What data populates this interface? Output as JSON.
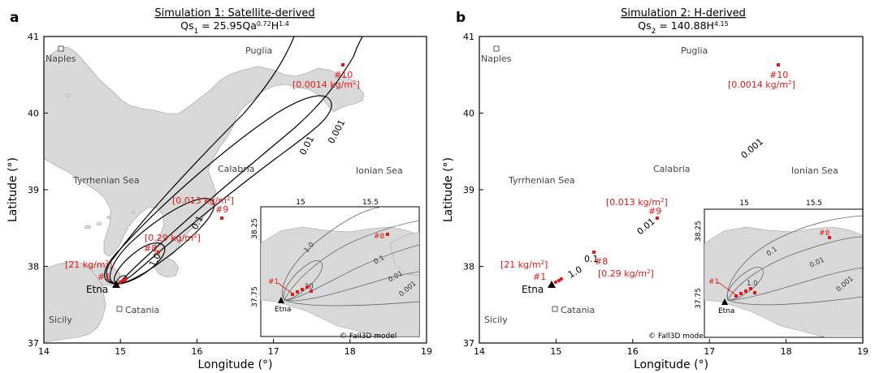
{
  "figure": {
    "panels": [
      {
        "letter": "a",
        "title": "Simulation 1: Satellite-derived",
        "formula_lhs": "Qs",
        "formula_sub": "1",
        "formula_rhs_prefix": " = 25.95Qa",
        "formula_exp1": "0.72",
        "formula_rhs_mid": "H",
        "formula_exp2": "1.4",
        "contour_labels": [
          "0.001",
          "0.01",
          "0.1",
          "1.0"
        ],
        "site_labels": [
          "[21 kg/m",
          "[0.29 kg/m",
          "[0.013 kg/m",
          "[0.0014 kg/m"
        ],
        "site_label_suffix": "2",
        "site_label_close": "]",
        "copyright": "© Fall3D model",
        "inset": {
          "x_ticks": [
            "15",
            "15.5"
          ],
          "y_ticks": [
            "38.25",
            "37.75"
          ],
          "contour_labels": [
            "20",
            "1.0",
            "0.1",
            "0.01",
            "0.001"
          ],
          "site_labels": [
            "#1",
            "#8"
          ],
          "etna": "Etna"
        }
      },
      {
        "letter": "b",
        "title": "Simulation 2: H-derived",
        "formula_lhs": "Qs",
        "formula_sub": "2",
        "formula_rhs_prefix": " = 140.88H",
        "formula_exp1": "4.15",
        "formula_rhs_mid": "",
        "formula_exp2": "",
        "contour_labels": [
          "0.001",
          "0.01",
          "0.1",
          "1.0"
        ],
        "site_labels": [
          "[21 kg/m",
          "[0.29 kg/m",
          "[0.013 kg/m",
          "[0.0014 kg/m"
        ],
        "site_label_suffix": "2",
        "site_label_close": "]",
        "copyright": "© Fall3D model",
        "inset": {
          "x_ticks": [
            "15",
            "15.5"
          ],
          "y_ticks": [
            "38.25",
            "37.75"
          ],
          "contour_labels": [
            "1.0",
            "0.1",
            "0.01",
            "0.001"
          ],
          "site_labels": [
            "#1",
            "#8"
          ],
          "etna": "Etna"
        }
      }
    ],
    "places": {
      "naples": "Naples",
      "puglia": "Puglia",
      "calabria": "Calabria",
      "sicily": "Sicily",
      "catania": "Catania",
      "etna": "Etna",
      "tyrrhenian": "Tyrrhenian Sea",
      "ionian": "Ionian Sea"
    },
    "sites": [
      "#1",
      "#8",
      "#9",
      "#10"
    ]
  },
  "chart_data": {
    "type": "scatter",
    "xlabel": "Longitude (°)",
    "ylabel": "Latitude (°)",
    "xlim": [
      14,
      19
    ],
    "ylim": [
      37,
      41
    ],
    "x_ticks": [
      14,
      15,
      16,
      17,
      18,
      19
    ],
    "y_ticks": [
      37,
      38,
      39,
      40,
      41
    ],
    "grid": false,
    "vent": {
      "name": "Etna",
      "lon": 15.0,
      "lat": 37.75
    },
    "sites": [
      {
        "name": "#1",
        "lon": 15.1,
        "lat": 37.82,
        "load": "[21 kg/m2]"
      },
      {
        "name": "#8",
        "lon": 15.55,
        "lat": 38.2,
        "load": "[0.29 kg/m2]"
      },
      {
        "name": "#9",
        "lon": 16.3,
        "lat": 38.66,
        "load": "[0.013 kg/m2]"
      },
      {
        "name": "#10",
        "lon": 17.95,
        "lat": 40.63,
        "load": "[0.0014 kg/m2]"
      }
    ],
    "contour_levels": [
      0.001,
      0.01,
      0.1,
      1.0,
      20
    ]
  },
  "colors": {
    "land": "#d9d9d9",
    "sea": "#ffffff",
    "site": "#e0191b",
    "contour": "#000000"
  }
}
